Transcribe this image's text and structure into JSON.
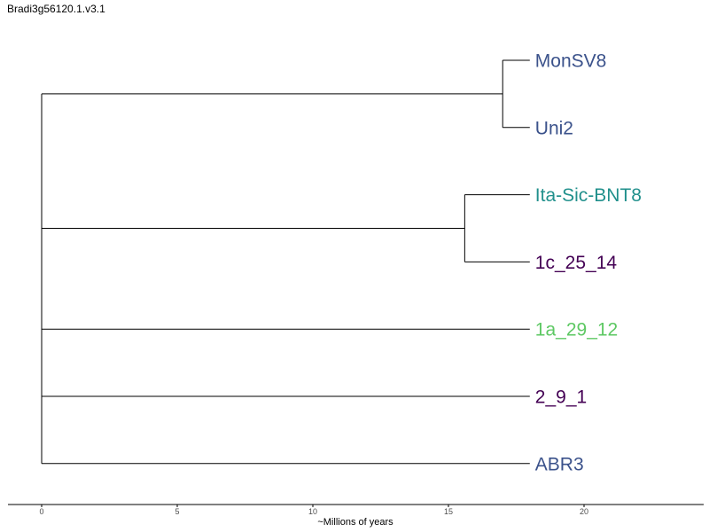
{
  "chart_data": {
    "type": "dendrogram",
    "title": "Bradi3g56120.1.v3.1",
    "xlabel": "~Millions of years",
    "xlim": [
      -1.25,
      24.5
    ],
    "xticks": [
      0,
      5,
      10,
      15,
      20
    ],
    "leaves": [
      {
        "name": "MonSV8",
        "x": 18,
        "color": "#3b528b"
      },
      {
        "name": "Uni2",
        "x": 18,
        "color": "#3b528b"
      },
      {
        "name": "Ita-Sic-BNT8",
        "x": 18,
        "color": "#21908c"
      },
      {
        "name": "1c_25_14",
        "x": 18,
        "color": "#440154"
      },
      {
        "name": "1a_29_12",
        "x": 18,
        "color": "#5dc863"
      },
      {
        "name": "2_9_1",
        "x": 18,
        "color": "#440154"
      },
      {
        "name": "ABR3",
        "x": 18,
        "color": "#3b528b"
      }
    ],
    "clades": [
      {
        "members": [
          "MonSV8",
          "Uni2"
        ],
        "height": 17
      },
      {
        "members": [
          "Ita-Sic-BNT8",
          "1c_25_14"
        ],
        "height": 15.6
      }
    ],
    "root": {
      "height": 0,
      "children": [
        "MonSV8|Uni2",
        "Ita-Sic-BNT8|1c_25_14",
        "1a_29_12",
        "2_9_1",
        "ABR3"
      ]
    }
  }
}
